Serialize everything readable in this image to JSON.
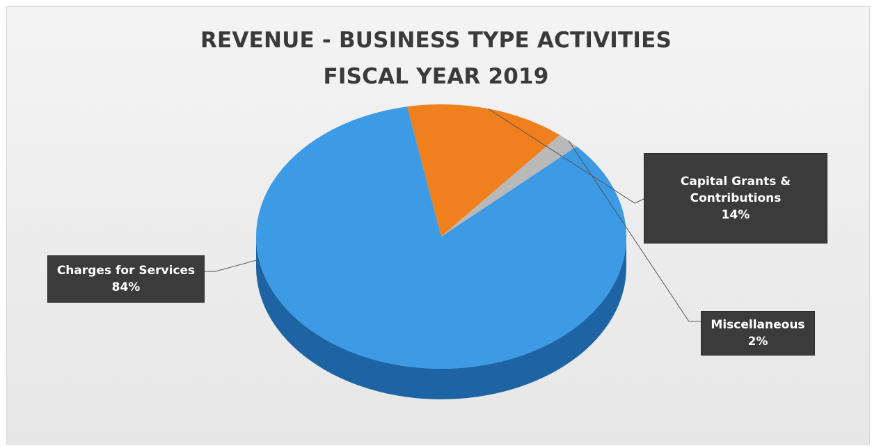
{
  "chart_data": {
    "type": "pie",
    "title": "REVENUE - BUSINESS TYPE ACTIVITIES",
    "subtitle": "FISCAL YEAR 2019",
    "slices": [
      {
        "name": "Charges for Services",
        "value": 84,
        "value_label": "84%",
        "color": "#3d9ae4",
        "side_color": "#1e64a4"
      },
      {
        "name": "Capital Grants &",
        "name_line2": "Contributions",
        "value": 14,
        "value_label": "14%",
        "color": "#f0801d",
        "side_color": "#b85a0d"
      },
      {
        "name": "Miscellaneous",
        "value": 2,
        "value_label": "2%",
        "color": "#b9b9b9",
        "side_color": "#7d7d7d"
      }
    ],
    "three_d": true,
    "legend": "none"
  }
}
